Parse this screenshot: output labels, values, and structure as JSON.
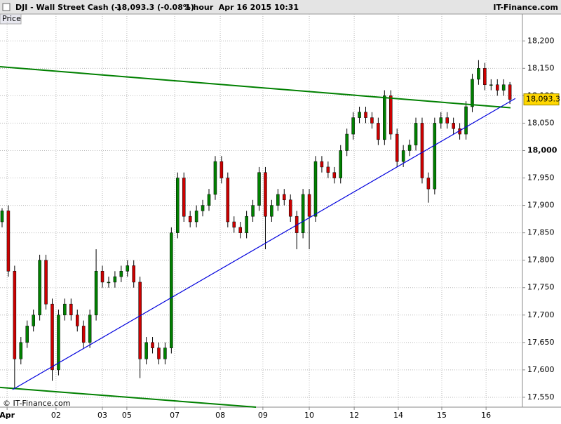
{
  "chart_data": {
    "type": "candlestick",
    "symbol": "DJI - Wall Street Cash (-)",
    "quote": "18,093.3 (-0.08%)",
    "period": "1 hour  Apr 16 2015 10:31",
    "brand": "IT-Finance.com",
    "copyright": "© IT-Finance.com",
    "axis_label": "Price",
    "last_label": "18,093.3",
    "last_value": 18093.3,
    "up_color": "#008000",
    "down_color": "#cc0000",
    "grid": true,
    "xlim": [
      0,
      250
    ],
    "ylim": [
      17532,
      18249
    ],
    "major_ytick": 18000,
    "major_xtick": "Apr",
    "yticks": [
      {
        "value": 17550,
        "label": "17,550"
      },
      {
        "value": 17600,
        "label": "17,600"
      },
      {
        "value": 17650,
        "label": "17,650"
      },
      {
        "value": 17700,
        "label": "17,700"
      },
      {
        "value": 17750,
        "label": "17,750"
      },
      {
        "value": 17800,
        "label": "17,800"
      },
      {
        "value": 17850,
        "label": "17,850"
      },
      {
        "value": 17900,
        "label": "17,900"
      },
      {
        "value": 17950,
        "label": "17,950"
      },
      {
        "value": 18000,
        "label": "18,000"
      },
      {
        "value": 18050,
        "label": "18,050"
      },
      {
        "value": 18100,
        "label": "18,100"
      },
      {
        "value": 18150,
        "label": "18,150"
      },
      {
        "value": 18200,
        "label": "18,200"
      }
    ],
    "xticks": [
      {
        "value": 3.4,
        "label": "Apr"
      },
      {
        "value": 26.8,
        "label": "02"
      },
      {
        "value": 49,
        "label": "03"
      },
      {
        "value": 60.7,
        "label": "05"
      },
      {
        "value": 83.6,
        "label": "07"
      },
      {
        "value": 105.4,
        "label": "08"
      },
      {
        "value": 125.8,
        "label": "09"
      },
      {
        "value": 148,
        "label": "10"
      },
      {
        "value": 169.5,
        "label": "12"
      },
      {
        "value": 190.6,
        "label": "14"
      },
      {
        "value": 211.4,
        "label": "15"
      },
      {
        "value": 232.6,
        "label": "16"
      }
    ],
    "x": [
      1,
      4,
      7,
      10,
      13,
      16,
      19,
      22,
      25,
      28,
      31,
      34,
      37,
      40,
      43,
      46,
      49,
      52,
      55,
      58,
      61,
      64,
      67,
      70,
      73,
      76,
      79,
      82,
      85,
      88,
      91,
      94,
      97,
      100,
      103,
      106,
      109,
      112,
      115,
      118,
      121,
      124,
      127,
      130,
      133,
      136,
      139,
      142,
      145,
      148,
      151,
      154,
      157,
      160,
      163,
      166,
      169,
      172,
      175,
      178,
      181,
      184,
      187,
      190,
      193,
      196,
      199,
      202,
      205,
      208,
      211,
      214,
      217,
      220,
      223,
      226,
      229,
      232,
      235,
      238,
      241,
      244
    ],
    "open": [
      17870,
      17890,
      17780,
      17620,
      17650,
      17680,
      17700,
      17800,
      17720,
      17600,
      17700,
      17720,
      17700,
      17680,
      17650,
      17700,
      17780,
      17760,
      17760,
      17770,
      17780,
      17790,
      17760,
      17620,
      17650,
      17640,
      17620,
      17640,
      17850,
      17950,
      17880,
      17870,
      17890,
      17900,
      17920,
      17980,
      17950,
      17870,
      17860,
      17850,
      17880,
      17900,
      17960,
      17880,
      17900,
      17920,
      17910,
      17880,
      17850,
      17920,
      17880,
      17980,
      17970,
      17960,
      17950,
      18000,
      18030,
      18060,
      18070,
      18060,
      18050,
      18020,
      18100,
      18030,
      17980,
      18000,
      18010,
      18050,
      17950,
      17930,
      18050,
      18060,
      18050,
      18040,
      18030,
      18080,
      18130,
      18150,
      18120,
      18120,
      18110,
      18120
    ],
    "high": [
      17895,
      17900,
      17790,
      17660,
      17690,
      17710,
      17810,
      17810,
      17730,
      17710,
      17730,
      17730,
      17710,
      17690,
      17710,
      17820,
      17790,
      17770,
      17780,
      17790,
      17800,
      17800,
      17770,
      17660,
      17660,
      17650,
      17650,
      17860,
      17960,
      17960,
      17890,
      17900,
      17910,
      17930,
      17990,
      17990,
      17960,
      17880,
      17870,
      17890,
      17910,
      17970,
      17970,
      17910,
      17930,
      17930,
      17920,
      17890,
      17930,
      17930,
      17990,
      17990,
      17980,
      17970,
      18010,
      18040,
      18070,
      18080,
      18080,
      18070,
      18060,
      18110,
      18110,
      18040,
      18010,
      18020,
      18060,
      18060,
      17960,
      18060,
      18070,
      18070,
      18060,
      18050,
      18090,
      18140,
      18165,
      18160,
      18130,
      18130,
      18130,
      18125
    ],
    "low": [
      17860,
      17770,
      17565,
      17610,
      17640,
      17670,
      17690,
      17710,
      17580,
      17590,
      17690,
      17690,
      17670,
      17640,
      17640,
      17690,
      17750,
      17750,
      17750,
      17760,
      17770,
      17750,
      17585,
      17610,
      17630,
      17610,
      17610,
      17630,
      17840,
      17870,
      17860,
      17860,
      17880,
      17890,
      17910,
      17940,
      17860,
      17850,
      17840,
      17840,
      17870,
      17890,
      17820,
      17870,
      17890,
      17900,
      17870,
      17820,
      17840,
      17820,
      17870,
      17960,
      17950,
      17940,
      17940,
      17990,
      18020,
      18050,
      18050,
      18040,
      18010,
      18010,
      18020,
      17970,
      17970,
      17990,
      18000,
      17940,
      17905,
      17920,
      18040,
      18040,
      18030,
      18020,
      18020,
      18070,
      18120,
      18110,
      18110,
      18100,
      18100,
      18085
    ],
    "close": [
      17890,
      17780,
      17620,
      17650,
      17680,
      17700,
      17800,
      17720,
      17600,
      17700,
      17720,
      17700,
      17680,
      17650,
      17700,
      17780,
      17760,
      17760,
      17770,
      17780,
      17790,
      17760,
      17620,
      17650,
      17640,
      17620,
      17640,
      17850,
      17950,
      17880,
      17870,
      17890,
      17900,
      17920,
      17980,
      17950,
      17870,
      17860,
      17850,
      17880,
      17900,
      17960,
      17880,
      17900,
      17920,
      17910,
      17880,
      17850,
      17920,
      17880,
      17980,
      17970,
      17960,
      17950,
      18000,
      18030,
      18060,
      18070,
      18060,
      18050,
      18020,
      18100,
      18030,
      17980,
      18000,
      18010,
      18050,
      17950,
      17930,
      18050,
      18060,
      18050,
      18040,
      18030,
      18080,
      18130,
      18150,
      18120,
      18120,
      18110,
      18120,
      18093.3
    ],
    "lines": [
      {
        "color": "#008000",
        "x": [
          0,
          244.3
        ],
        "y": [
          18153,
          18078
        ]
      },
      {
        "color": "#008000",
        "x": [
          0,
          122.5
        ],
        "y": [
          17568,
          17532
        ]
      },
      {
        "color": "#0000dd",
        "x": [
          6,
          246.6
        ],
        "y": [
          17564,
          18095
        ]
      }
    ]
  }
}
